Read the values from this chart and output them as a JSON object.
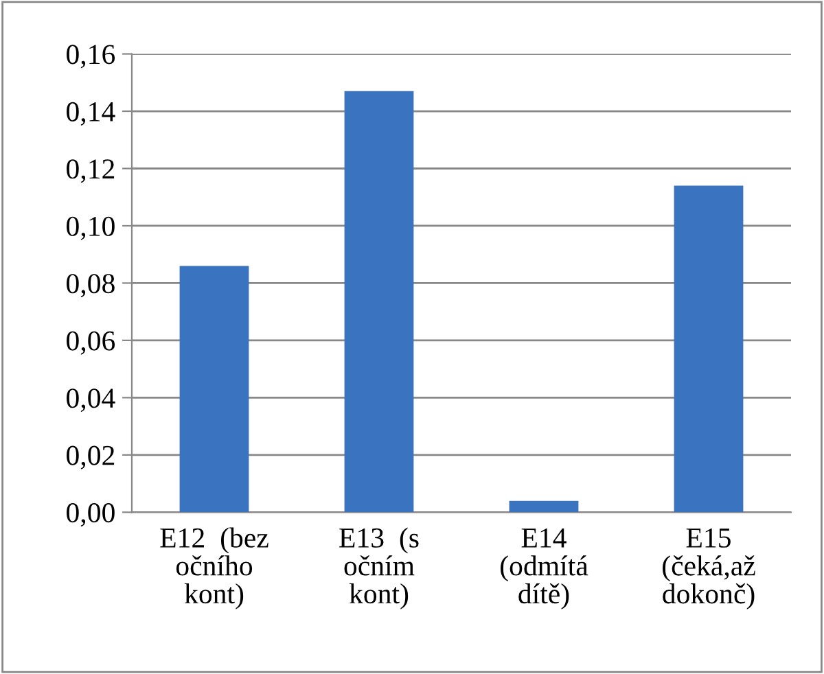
{
  "chart_data": {
    "type": "bar",
    "categories": [
      "E12  (bez\nočního\nkont)",
      "E13  (s\nočním\nkont)",
      "E14\n(odmítá\ndítě)",
      "E15\n(čeká,až\ndokonč)"
    ],
    "values": [
      0.086,
      0.147,
      0.004,
      0.114
    ],
    "color": "#3a73c0",
    "ylim": [
      0,
      0.16
    ],
    "yticks": [
      {
        "value": 0,
        "label": "0,00"
      },
      {
        "value": 0.02,
        "label": "0,02"
      },
      {
        "value": 0.04,
        "label": "0,04"
      },
      {
        "value": 0.06,
        "label": "0,06"
      },
      {
        "value": 0.08,
        "label": "0,08"
      },
      {
        "value": 0.1,
        "label": "0,10"
      },
      {
        "value": 0.12,
        "label": "0,12"
      },
      {
        "value": 0.14,
        "label": "0,14"
      },
      {
        "value": 0.16,
        "label": "0,16"
      }
    ],
    "grid": "y",
    "legend": false
  }
}
